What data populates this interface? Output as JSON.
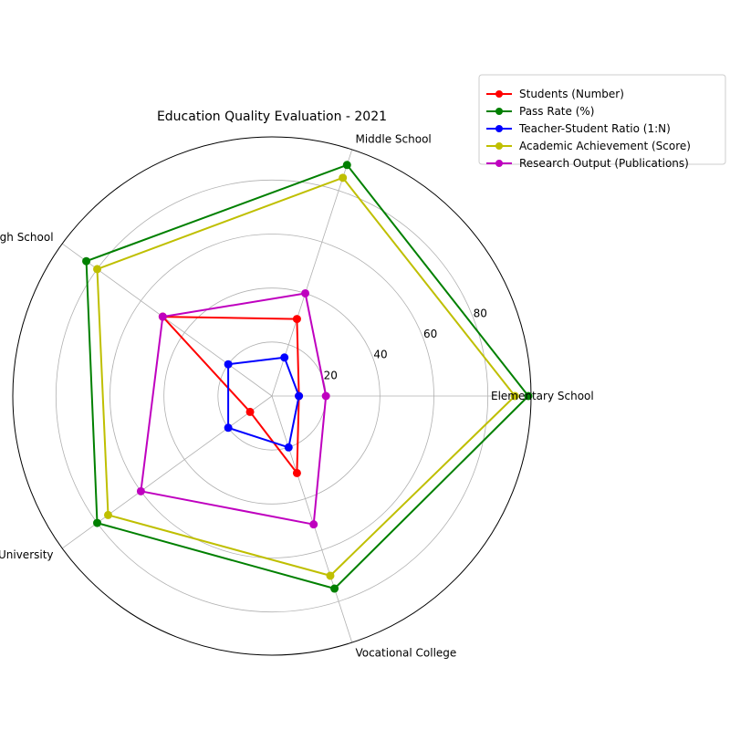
{
  "chart_data": {
    "type": "radar",
    "title": "Education Quality Evaluation - 2021",
    "categories": [
      "Elementary School",
      "Middle School",
      "High School",
      "University",
      "Vocational College"
    ],
    "rlim": [
      0,
      96
    ],
    "rticks": [
      20,
      40,
      60,
      80
    ],
    "rtick_labels": [
      "20",
      "40",
      "60",
      "80"
    ],
    "grid": true,
    "legend_position": "top-right, outside plot",
    "series": [
      {
        "name": "Students (Number)",
        "color": "#ff0000",
        "values": [
          10,
          30,
          50,
          10,
          30
        ]
      },
      {
        "name": "Pass Rate (%)",
        "color": "#008000",
        "values": [
          95,
          90,
          85,
          80,
          75
        ]
      },
      {
        "name": "Teacher-Student Ratio (1:N)",
        "color": "#0000ff",
        "values": [
          10,
          15,
          20,
          20,
          20
        ]
      },
      {
        "name": "Academic Achievement (Score)",
        "color": "#bfbf00",
        "values": [
          90,
          85,
          80,
          75,
          70
        ]
      },
      {
        "name": "Research Output (Publications)",
        "color": "#bf00bf",
        "values": [
          20,
          40,
          50,
          60,
          50
        ]
      }
    ]
  }
}
